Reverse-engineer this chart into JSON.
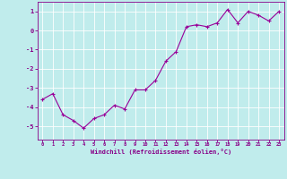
{
  "x": [
    0,
    1,
    2,
    3,
    4,
    5,
    6,
    7,
    8,
    9,
    10,
    11,
    12,
    13,
    14,
    15,
    16,
    17,
    18,
    19,
    20,
    21,
    22,
    23
  ],
  "y": [
    -3.6,
    -3.3,
    -4.4,
    -4.7,
    -5.1,
    -4.6,
    -4.4,
    -3.9,
    -4.1,
    -3.1,
    -3.1,
    -2.6,
    -1.6,
    -1.1,
    0.2,
    0.3,
    0.2,
    0.4,
    1.1,
    0.4,
    1.0,
    0.8,
    0.5,
    1.0
  ],
  "line_color": "#990099",
  "marker": "+",
  "background_color": "#c0ecec",
  "grid_color": "#aadddd",
  "xlabel": "Windchill (Refroidissement éolien,°C)",
  "ylim": [
    -5.7,
    1.5
  ],
  "xlim": [
    -0.5,
    23.5
  ],
  "yticks": [
    -5,
    -4,
    -3,
    -2,
    -1,
    0,
    1
  ],
  "xticks": [
    0,
    1,
    2,
    3,
    4,
    5,
    6,
    7,
    8,
    9,
    10,
    11,
    12,
    13,
    14,
    15,
    16,
    17,
    18,
    19,
    20,
    21,
    22,
    23
  ],
  "tick_color": "#880088",
  "label_color": "#880088",
  "line_width": 0.8,
  "marker_size": 3
}
